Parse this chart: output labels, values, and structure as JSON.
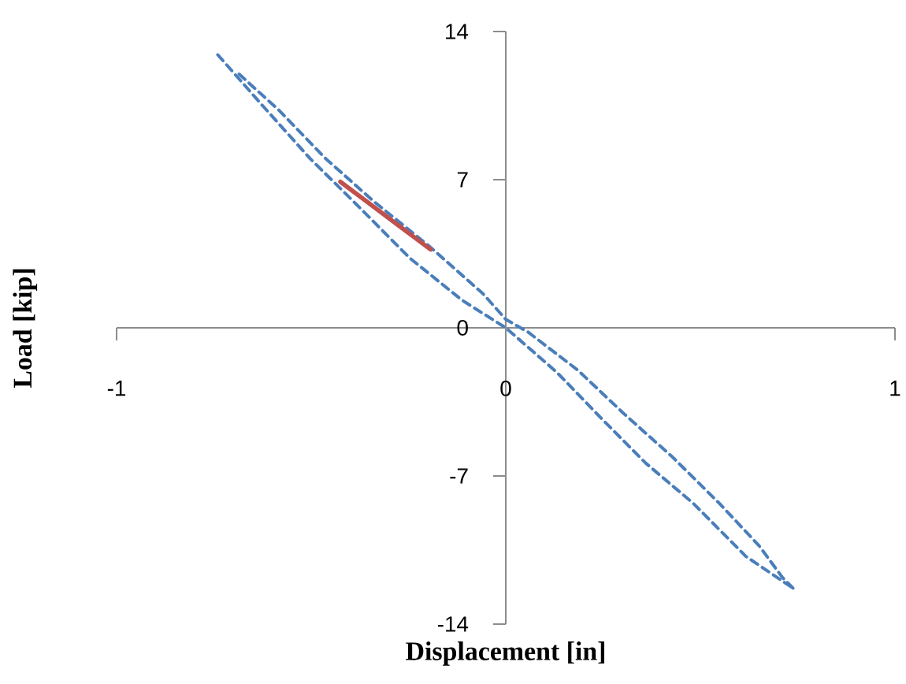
{
  "chart_data": {
    "type": "line",
    "xlabel": "Displacement [in]",
    "ylabel": "Load [kip]",
    "xlim": [
      -1,
      1
    ],
    "ylim": [
      -14,
      14
    ],
    "xticks": [
      -1,
      0,
      1
    ],
    "yticks": [
      -14,
      -7,
      0,
      7,
      14
    ],
    "series": [
      {
        "color": "#4a7ebb",
        "line_style": "dashed",
        "x": [
          -0.74,
          -0.625,
          -0.503,
          -0.382,
          -0.247,
          -0.112,
          0,
          0.131,
          0.252,
          0.36,
          0.482,
          0.617,
          0.738
        ],
        "values": [
          12.9,
          10.5,
          8.0,
          5.8,
          3.3,
          1.3,
          0,
          -2.1,
          -4.4,
          -6.4,
          -8.3,
          -10.8,
          -12.3
        ]
      },
      {
        "color": "#4a7ebb",
        "line_style": "dashed",
        "x": [
          0.738,
          0.711,
          0.651,
          0.549,
          0.428,
          0.306,
          0.185,
          0.057,
          0,
          -0.058,
          -0.193,
          -0.341,
          -0.463,
          -0.584,
          -0.692
        ],
        "values": [
          -12.3,
          -11.8,
          -10.3,
          -8.3,
          -6.1,
          -4.1,
          -2.0,
          -0.2,
          0.4,
          1.6,
          3.8,
          6.0,
          8.0,
          10.3,
          12.1
        ]
      },
      {
        "color": "#c0504d",
        "line_style": "solid",
        "x": [
          -0.425,
          -0.193
        ],
        "values": [
          6.9,
          3.7
        ]
      }
    ]
  }
}
